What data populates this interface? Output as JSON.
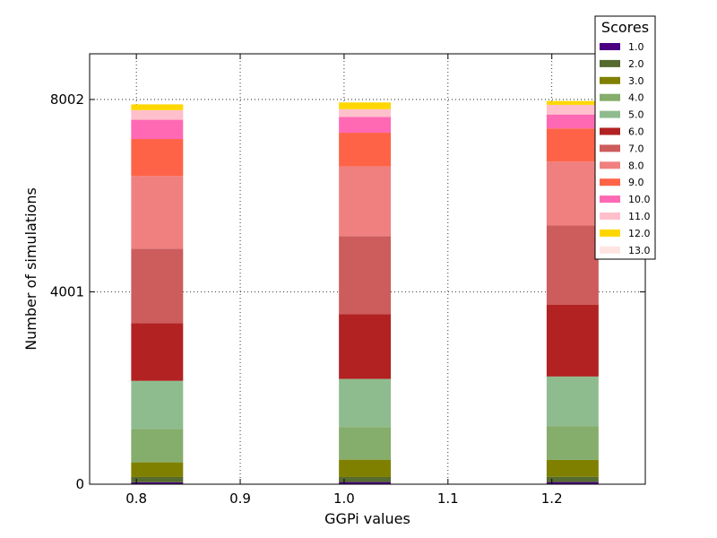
{
  "chart_data": {
    "type": "bar",
    "stacked": true,
    "title": "",
    "xlabel": "GGPi values",
    "ylabel": "Number of simulations",
    "x": [
      0.82,
      1.02,
      1.22
    ],
    "xlim": [
      0.755,
      1.29
    ],
    "ylim": [
      0,
      8952
    ],
    "xticks": [
      0.8,
      0.9,
      1.0,
      1.1,
      1.2
    ],
    "xtick_labels": [
      "0.8",
      "0.9",
      "1.0",
      "1.1",
      "1.2"
    ],
    "yticks": [
      0,
      4001,
      8002
    ],
    "ytick_labels": [
      "0",
      "4001",
      "8002"
    ],
    "grid": true,
    "legend_title": "Scores",
    "legend_position": "top-right",
    "series": [
      {
        "name": "1.0",
        "color": "#4b0082",
        "values": [
          40,
          45,
          45
        ]
      },
      {
        "name": "2.0",
        "color": "#556b2f",
        "values": [
          110,
          105,
          110
        ]
      },
      {
        "name": "3.0",
        "color": "#808000",
        "values": [
          305,
          360,
          350
        ]
      },
      {
        "name": "4.0",
        "color": "#85ad6b",
        "values": [
          695,
          680,
          705
        ]
      },
      {
        "name": "5.0",
        "color": "#8fbc8f",
        "values": [
          1000,
          1000,
          1030
        ]
      },
      {
        "name": "6.0",
        "color": "#b22222",
        "values": [
          1200,
          1350,
          1490
        ]
      },
      {
        "name": "7.0",
        "color": "#cd5c5c",
        "values": [
          1550,
          1620,
          1650
        ]
      },
      {
        "name": "8.0",
        "color": "#f08080",
        "values": [
          1510,
          1450,
          1330
        ]
      },
      {
        "name": "9.0",
        "color": "#ff6347",
        "values": [
          770,
          700,
          690
        ]
      },
      {
        "name": "10.0",
        "color": "#ff69b4",
        "values": [
          400,
          330,
          290
        ]
      },
      {
        "name": "11.0",
        "color": "#ffc0cb",
        "values": [
          200,
          160,
          200
        ]
      },
      {
        "name": "12.0",
        "color": "#ffd700",
        "values": [
          120,
          140,
          80
        ]
      },
      {
        "name": "13.0",
        "color": "#ffe4e1",
        "values": [
          0,
          0,
          0
        ]
      }
    ]
  }
}
